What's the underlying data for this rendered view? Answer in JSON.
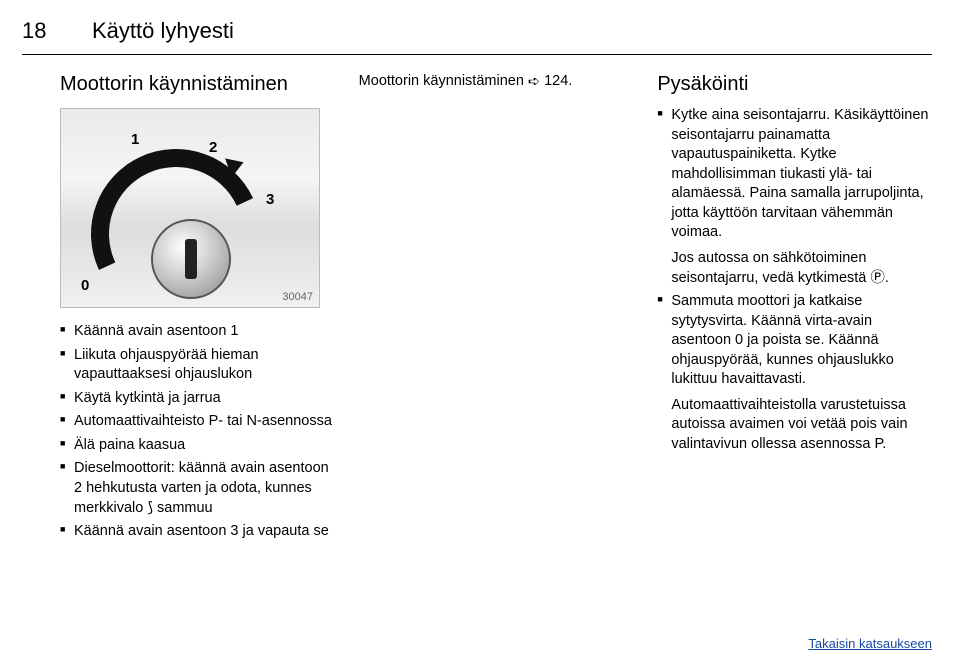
{
  "page_number": "18",
  "page_title": "Käyttö lyhyesti",
  "col1": {
    "heading": "Moottorin käynnistäminen",
    "image_labels": {
      "l0": "0",
      "l1": "1",
      "l2": "2",
      "l3": "3"
    },
    "image_number": "30047",
    "bullets": [
      "Käännä avain asentoon 1",
      "Liikuta ohjauspyörää hieman vapauttaaksesi ohjauslukon",
      "Käytä kytkintä ja jarrua",
      "Automaattivaihteisto P- tai N-asennossa",
      "Älä paina kaasua",
      "Dieselmoottorit: käännä avain asentoon 2 hehkutusta varten ja odota, kunnes merkkivalo ⟆ sammuu",
      "Käännä avain asentoon 3 ja vapauta se"
    ]
  },
  "col2": {
    "line_prefix": "Moottorin käynnistäminen ",
    "ref_glyph": "➪",
    "ref_page": " 124."
  },
  "col3": {
    "heading": "Pysäköinti",
    "items": [
      {
        "main": "Kytke aina seisontajarru. Käsikäyttöinen seisontajarru painamatta vapautuspainiketta. Kytke mahdollisimman tiukasti ylä- tai alamäessä. Paina samalla jarrupoljinta, jotta käyttöön tarvitaan vähemmän voimaa.",
        "sub": "Jos autossa on sähkötoiminen seisontajarru, vedä kytkimestä Ⓟ."
      },
      {
        "main": "Sammuta moottori ja katkaise sytytysvirta. Käännä virta-avain asentoon 0 ja poista se. Käännä ohjauspyörää, kunnes ohjauslukko lukittuu havaittavasti.",
        "sub": "Automaattivaihteistolla varustetuissa autoissa avaimen voi vetää pois vain valintavivun ollessa asennossa P."
      }
    ]
  },
  "footer": "Takaisin katsaukseen",
  "colors": {
    "link": "#1a4aa0"
  }
}
